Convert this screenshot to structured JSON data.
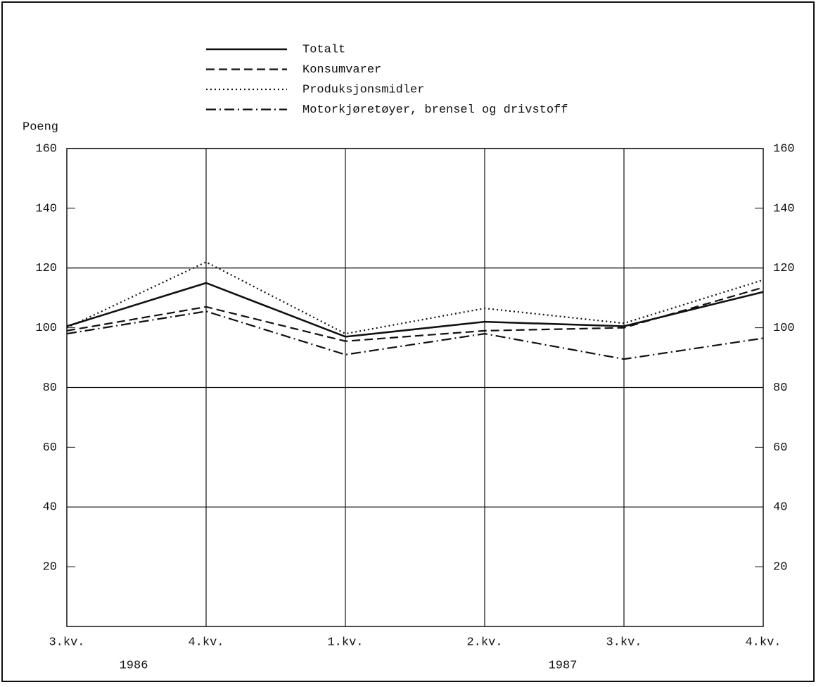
{
  "chart_data": {
    "type": "line",
    "y_label": "Poeng",
    "categories": [
      "3.kv.",
      "4.kv.",
      "1.kv.",
      "2.kv.",
      "3.kv.",
      "4.kv."
    ],
    "year_labels": [
      "1986",
      "1987"
    ],
    "ylim": [
      0,
      160
    ],
    "yticks": [
      20,
      40,
      60,
      80,
      100,
      120,
      140,
      160
    ],
    "grid": true,
    "series": [
      {
        "name": "Totalt",
        "color": "#111111",
        "style": "solid",
        "values": [
          100.5,
          115,
          97,
          102,
          100.5,
          112
        ]
      },
      {
        "name": "Konsumvarer",
        "color": "#111111",
        "style": "dashed",
        "values": [
          99,
          107,
          95.5,
          99,
          100,
          113.5
        ]
      },
      {
        "name": "Produksjonsmidler",
        "color": "#111111",
        "style": "dotted",
        "values": [
          100,
          122,
          98,
          106.5,
          101.5,
          116
        ]
      },
      {
        "name": "Motorkjøretøyer, brensel og drivstoff",
        "color": "#111111",
        "style": "dashdot",
        "values": [
          98,
          105.5,
          91,
          98,
          89.5,
          96.5
        ]
      }
    ]
  }
}
